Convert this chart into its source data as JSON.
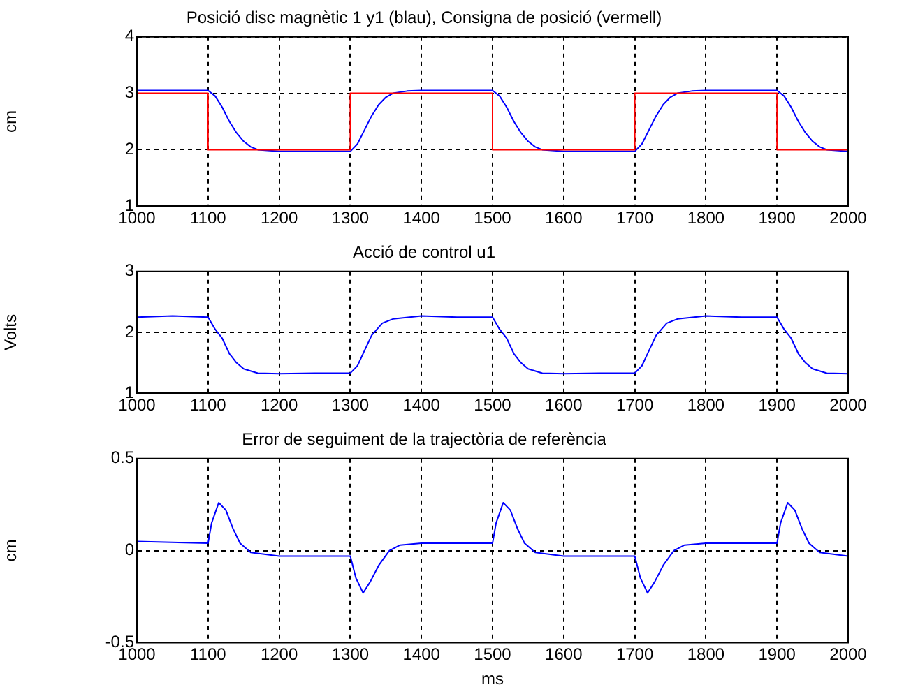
{
  "chart_data": [
    {
      "type": "line",
      "title": "Posició disc magnètic 1 y1 (blau), Consigna de posició (vermell)",
      "ylabel": "cm",
      "xlim": [
        1000,
        2000
      ],
      "xticks": [
        1000,
        1100,
        1200,
        1300,
        1400,
        1500,
        1600,
        1700,
        1800,
        1900,
        2000
      ],
      "ylim": [
        1,
        4
      ],
      "yticks": [
        1,
        2,
        3,
        4
      ],
      "grid": true,
      "legend": false,
      "marker": "none",
      "line_style": "solid",
      "series": [
        {
          "color": "#ff0000",
          "x": [
            1000,
            1100,
            1100,
            1300,
            1300,
            1500,
            1500,
            1700,
            1700,
            1900,
            1900,
            2000
          ],
          "values": [
            3,
            3,
            2,
            2,
            3,
            3,
            2,
            2,
            3,
            3,
            2,
            2
          ]
        },
        {
          "color": "#0000ff",
          "x": [
            1000,
            1100,
            1110,
            1120,
            1130,
            1140,
            1150,
            1160,
            1170,
            1200,
            1300,
            1310,
            1320,
            1330,
            1340,
            1350,
            1360,
            1380,
            1400,
            1500,
            1510,
            1520,
            1530,
            1540,
            1550,
            1560,
            1570,
            1600,
            1700,
            1710,
            1720,
            1730,
            1740,
            1750,
            1760,
            1780,
            1800,
            1900,
            1910,
            1920,
            1930,
            1940,
            1950,
            1960,
            1970,
            2000
          ],
          "values": [
            3.05,
            3.05,
            2.95,
            2.75,
            2.5,
            2.3,
            2.15,
            2.05,
            2.0,
            1.97,
            1.97,
            2.1,
            2.35,
            2.6,
            2.8,
            2.93,
            3.0,
            3.04,
            3.05,
            3.05,
            2.95,
            2.75,
            2.5,
            2.3,
            2.15,
            2.05,
            2.0,
            1.97,
            1.97,
            2.1,
            2.35,
            2.6,
            2.8,
            2.93,
            3.0,
            3.04,
            3.05,
            3.05,
            2.95,
            2.75,
            2.5,
            2.3,
            2.15,
            2.05,
            2.0,
            1.97
          ]
        }
      ]
    },
    {
      "type": "line",
      "title": "Acció de control u1",
      "ylabel": "Volts",
      "xlim": [
        1000,
        2000
      ],
      "xticks": [
        1000,
        1100,
        1200,
        1300,
        1400,
        1500,
        1600,
        1700,
        1800,
        1900,
        2000
      ],
      "ylim": [
        1,
        3
      ],
      "yticks": [
        1,
        2,
        3
      ],
      "grid": true,
      "legend": false,
      "marker": "none",
      "line_style": "solid",
      "series": [
        {
          "color": "#0000ff",
          "x": [
            1000,
            1050,
            1100,
            1110,
            1120,
            1130,
            1140,
            1150,
            1170,
            1200,
            1250,
            1300,
            1310,
            1320,
            1330,
            1345,
            1360,
            1400,
            1450,
            1500,
            1510,
            1520,
            1530,
            1540,
            1550,
            1570,
            1600,
            1650,
            1700,
            1710,
            1720,
            1730,
            1745,
            1760,
            1800,
            1850,
            1900,
            1910,
            1920,
            1930,
            1940,
            1950,
            1970,
            2000
          ],
          "values": [
            2.25,
            2.27,
            2.25,
            2.05,
            1.9,
            1.65,
            1.5,
            1.4,
            1.33,
            1.32,
            1.33,
            1.33,
            1.45,
            1.7,
            1.95,
            2.15,
            2.22,
            2.27,
            2.25,
            2.25,
            2.05,
            1.9,
            1.65,
            1.5,
            1.4,
            1.33,
            1.32,
            1.33,
            1.33,
            1.45,
            1.7,
            1.95,
            2.15,
            2.22,
            2.27,
            2.25,
            2.25,
            2.05,
            1.9,
            1.65,
            1.5,
            1.4,
            1.33,
            1.32
          ]
        }
      ]
    },
    {
      "type": "line",
      "title": "Error de seguiment de la trajectòria de referència",
      "xlabel": "ms",
      "ylabel": "cm",
      "xlim": [
        1000,
        2000
      ],
      "xticks": [
        1000,
        1100,
        1200,
        1300,
        1400,
        1500,
        1600,
        1700,
        1800,
        1900,
        2000
      ],
      "ylim": [
        -0.5,
        0.5
      ],
      "yticks": [
        -0.5,
        0,
        0.5
      ],
      "grid": true,
      "legend": false,
      "marker": "none",
      "line_style": "solid",
      "series": [
        {
          "color": "#0000ff",
          "x": [
            1000,
            1100,
            1105,
            1115,
            1125,
            1135,
            1145,
            1160,
            1200,
            1300,
            1308,
            1318,
            1328,
            1340,
            1355,
            1370,
            1400,
            1500,
            1505,
            1515,
            1525,
            1535,
            1545,
            1560,
            1600,
            1700,
            1708,
            1718,
            1728,
            1740,
            1755,
            1770,
            1800,
            1900,
            1905,
            1915,
            1925,
            1935,
            1945,
            1960,
            2000
          ],
          "values": [
            0.05,
            0.04,
            0.15,
            0.26,
            0.22,
            0.12,
            0.04,
            -0.01,
            -0.03,
            -0.03,
            -0.15,
            -0.23,
            -0.17,
            -0.08,
            0.0,
            0.03,
            0.04,
            0.04,
            0.15,
            0.26,
            0.22,
            0.12,
            0.04,
            -0.01,
            -0.03,
            -0.03,
            -0.15,
            -0.23,
            -0.17,
            -0.08,
            0.0,
            0.03,
            0.04,
            0.04,
            0.15,
            0.26,
            0.22,
            0.12,
            0.04,
            -0.01,
            -0.03
          ]
        }
      ]
    }
  ]
}
